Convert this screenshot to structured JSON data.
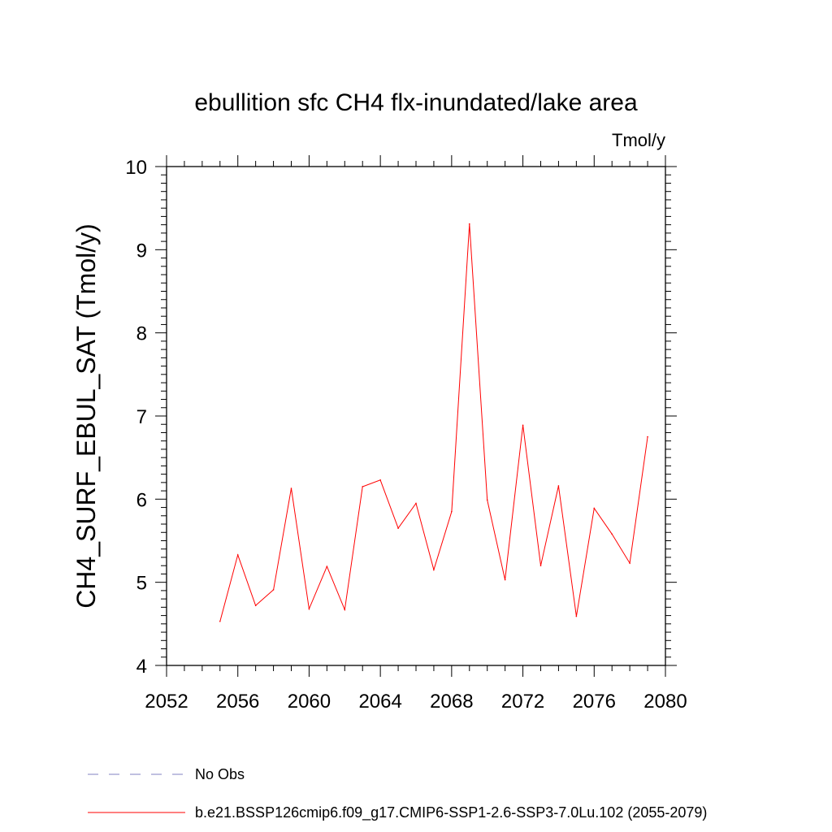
{
  "chart_data": {
    "type": "line",
    "title": "ebullition sfc CH4 flx-inundated/lake area",
    "units_label": "Tmol/y",
    "ylabel": "CH4_SURF_EBUL_SAT  (Tmol/y)",
    "xlabel": "",
    "xlim": [
      2052,
      2080
    ],
    "ylim": [
      4,
      10
    ],
    "x_ticks": [
      2052,
      2056,
      2060,
      2064,
      2068,
      2072,
      2076,
      2080
    ],
    "y_ticks": [
      4,
      5,
      6,
      7,
      8,
      9,
      10
    ],
    "grid": false,
    "series": [
      {
        "name": "b.e21.BSSP126cmip6.f09_g17.CMIP6-SSP1-2.6-SSP3-7.0Lu.102 (2055-2079)",
        "color": "#ff0000",
        "x": [
          2055,
          2056,
          2057,
          2058,
          2059,
          2060,
          2061,
          2062,
          2063,
          2064,
          2065,
          2066,
          2067,
          2068,
          2069,
          2070,
          2071,
          2072,
          2073,
          2074,
          2075,
          2076,
          2077,
          2078,
          2079
        ],
        "y": [
          4.53,
          5.33,
          4.72,
          4.91,
          6.13,
          4.68,
          5.19,
          4.67,
          6.15,
          6.23,
          5.65,
          5.95,
          5.15,
          5.85,
          9.31,
          5.99,
          5.03,
          6.89,
          5.2,
          6.16,
          4.59,
          5.89,
          5.58,
          5.23,
          6.75
        ]
      }
    ],
    "legend": [
      {
        "label": "No Obs",
        "color": "#8080c0",
        "style": "dashed"
      },
      {
        "label": "b.e21.BSSP126cmip6.f09_g17.CMIP6-SSP1-2.6-SSP3-7.0Lu.102 (2055-2079)",
        "color": "#ff0000",
        "style": "solid"
      }
    ],
    "legend_position": "bottom"
  }
}
